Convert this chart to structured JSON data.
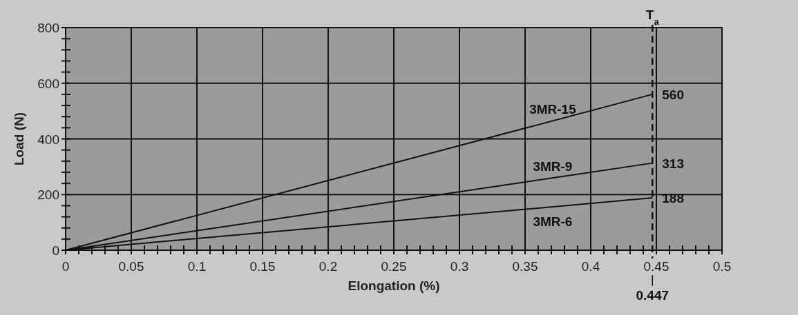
{
  "chart_data": {
    "type": "line",
    "xlabel": "Elongation (%)",
    "ylabel": "Load (N)",
    "xlim": [
      0,
      0.5
    ],
    "ylim": [
      0,
      800
    ],
    "xticks": [
      0,
      {
        "value": 0.01,
        "label": null
      },
      {
        "value": 0.02,
        "label": null
      },
      {
        "value": 0.03,
        "label": null
      },
      {
        "value": 0.04,
        "label": null
      },
      0.05,
      {
        "value": 0.06,
        "label": null
      },
      {
        "value": 0.07,
        "label": null
      },
      {
        "value": 0.08,
        "label": null
      },
      {
        "value": 0.09,
        "label": null
      },
      0.1,
      {
        "value": 0.11,
        "label": null
      },
      {
        "value": 0.12,
        "label": null
      },
      {
        "value": 0.13,
        "label": null
      },
      {
        "value": 0.14,
        "label": null
      },
      0.15,
      {
        "value": 0.16,
        "label": null
      },
      {
        "value": 0.17,
        "label": null
      },
      {
        "value": 0.18,
        "label": null
      },
      {
        "value": 0.19,
        "label": null
      },
      0.2,
      {
        "value": 0.21,
        "label": null
      },
      {
        "value": 0.22,
        "label": null
      },
      {
        "value": 0.23,
        "label": null
      },
      {
        "value": 0.24,
        "label": null
      },
      0.25,
      {
        "value": 0.26,
        "label": null
      },
      {
        "value": 0.27,
        "label": null
      },
      {
        "value": 0.28,
        "label": null
      },
      {
        "value": 0.29,
        "label": null
      },
      0.3,
      {
        "value": 0.31,
        "label": null
      },
      {
        "value": 0.32,
        "label": null
      },
      {
        "value": 0.33,
        "label": null
      },
      {
        "value": 0.34,
        "label": null
      },
      0.35,
      {
        "value": 0.36,
        "label": null
      },
      {
        "value": 0.37,
        "label": null
      },
      {
        "value": 0.38,
        "label": null
      },
      {
        "value": 0.39,
        "label": null
      },
      0.4,
      {
        "value": 0.41,
        "label": null
      },
      {
        "value": 0.42,
        "label": null
      },
      {
        "value": 0.43,
        "label": null
      },
      {
        "value": 0.44,
        "label": null
      },
      0.45,
      {
        "value": 0.46,
        "label": null
      },
      {
        "value": 0.47,
        "label": null
      },
      {
        "value": 0.48,
        "label": null
      },
      {
        "value": 0.49,
        "label": null
      },
      0.5
    ],
    "yticks": [
      0,
      {
        "value": 40,
        "label": null
      },
      {
        "value": 80,
        "label": null
      },
      {
        "value": 120,
        "label": null
      },
      {
        "value": 160,
        "label": null
      },
      200,
      {
        "value": 240,
        "label": null
      },
      {
        "value": 280,
        "label": null
      },
      {
        "value": 320,
        "label": null
      },
      {
        "value": 360,
        "label": null
      },
      400,
      {
        "value": 440,
        "label": null
      },
      {
        "value": 480,
        "label": null
      },
      {
        "value": 520,
        "label": null
      },
      {
        "value": 560,
        "label": null
      },
      600,
      {
        "value": 640,
        "label": null
      },
      {
        "value": 680,
        "label": null
      },
      {
        "value": 720,
        "label": null
      },
      {
        "value": 760,
        "label": null
      },
      800
    ],
    "grid": true,
    "line_style": "solid",
    "x": [
      0,
      0.447
    ],
    "series": [
      {
        "name": "3MR-15",
        "color": "#111111",
        "values": [
          0,
          560
        ],
        "value_labels": [
          null,
          "560"
        ]
      },
      {
        "name": "3MR-9",
        "color": "#111111",
        "values": [
          0,
          313
        ],
        "value_labels": [
          null,
          "313"
        ]
      },
      {
        "name": "3MR-6",
        "color": "#111111",
        "values": [
          0,
          188
        ],
        "value_labels": [
          null,
          "188"
        ]
      }
    ],
    "annotations": [
      {
        "text": "0.447",
        "x": 0.447,
        "y": 0
      }
    ],
    "ref_lines": [
      {
        "axis": "x",
        "value": 0.447,
        "label": "T$_{a}$",
        "line_style": "dashed"
      }
    ]
  }
}
